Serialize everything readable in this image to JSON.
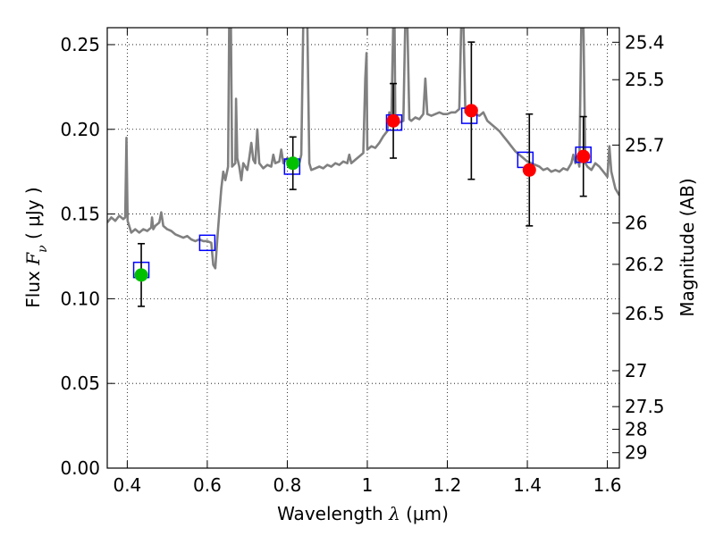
{
  "chart_data": {
    "type": "line",
    "xlabel": {
      "text": "Wavelength",
      "symbol": "λ",
      "unit": "(μm)"
    },
    "ylabel": {
      "text": "Flux",
      "symbol": "F",
      "subscript": "ν",
      "unit": "( μJy )"
    },
    "y2label": "Magnitude (AB)",
    "xlim": [
      0.35,
      1.63
    ],
    "ylim": [
      0.0,
      0.26
    ],
    "grid": true,
    "xticks": [
      0.4,
      0.6,
      0.8,
      1.0,
      1.2,
      1.4,
      1.6
    ],
    "xtick_labels": [
      "0.4",
      "0.6",
      "0.8",
      "1",
      "1.2",
      "1.4",
      "1.6"
    ],
    "yticks": [
      0.0,
      0.05,
      0.1,
      0.15,
      0.2,
      0.25
    ],
    "ytick_labels": [
      "0.00",
      "0.05",
      "0.10",
      "0.15",
      "0.20",
      "0.25"
    ],
    "y2ticks": [
      {
        "label": "25.4",
        "flux": 0.2514
      },
      {
        "label": "25.5",
        "flux": 0.2293
      },
      {
        "label": "25.7",
        "flux": 0.1907
      },
      {
        "label": "26",
        "flux": 0.1447
      },
      {
        "label": "26.2",
        "flux": 0.1203
      },
      {
        "label": "26.5",
        "flux": 0.0913
      },
      {
        "label": "27",
        "flux": 0.0575
      },
      {
        "label": "27.5",
        "flux": 0.0363
      },
      {
        "label": "28",
        "flux": 0.0229
      },
      {
        "label": "29",
        "flux": 0.0091
      }
    ],
    "series": [
      {
        "kind": "sed_model",
        "color": "#808080",
        "points": [
          [
            0.35,
            0.145
          ],
          [
            0.36,
            0.148
          ],
          [
            0.37,
            0.146
          ],
          [
            0.38,
            0.149
          ],
          [
            0.39,
            0.147
          ],
          [
            0.395,
            0.148
          ],
          [
            0.398,
            0.195
          ],
          [
            0.401,
            0.146
          ],
          [
            0.41,
            0.139
          ],
          [
            0.42,
            0.141
          ],
          [
            0.43,
            0.139
          ],
          [
            0.44,
            0.141
          ],
          [
            0.45,
            0.14
          ],
          [
            0.46,
            0.142
          ],
          [
            0.462,
            0.148
          ],
          [
            0.465,
            0.141
          ],
          [
            0.47,
            0.143
          ],
          [
            0.48,
            0.145
          ],
          [
            0.485,
            0.151
          ],
          [
            0.49,
            0.143
          ],
          [
            0.5,
            0.141
          ],
          [
            0.51,
            0.14
          ],
          [
            0.52,
            0.138
          ],
          [
            0.53,
            0.137
          ],
          [
            0.54,
            0.136
          ],
          [
            0.55,
            0.137
          ],
          [
            0.56,
            0.135
          ],
          [
            0.57,
            0.134
          ],
          [
            0.58,
            0.135
          ],
          [
            0.59,
            0.134
          ],
          [
            0.6,
            0.134
          ],
          [
            0.61,
            0.133
          ],
          [
            0.615,
            0.12
          ],
          [
            0.62,
            0.118
          ],
          [
            0.625,
            0.135
          ],
          [
            0.63,
            0.15
          ],
          [
            0.635,
            0.165
          ],
          [
            0.64,
            0.175
          ],
          [
            0.645,
            0.17
          ],
          [
            0.652,
            0.178
          ],
          [
            0.655,
            0.265
          ],
          [
            0.659,
            0.265
          ],
          [
            0.662,
            0.178
          ],
          [
            0.67,
            0.18
          ],
          [
            0.672,
            0.218
          ],
          [
            0.675,
            0.183
          ],
          [
            0.68,
            0.178
          ],
          [
            0.685,
            0.17
          ],
          [
            0.69,
            0.18
          ],
          [
            0.7,
            0.176
          ],
          [
            0.705,
            0.183
          ],
          [
            0.71,
            0.192
          ],
          [
            0.715,
            0.182
          ],
          [
            0.72,
            0.18
          ],
          [
            0.725,
            0.2
          ],
          [
            0.73,
            0.18
          ],
          [
            0.74,
            0.177
          ],
          [
            0.75,
            0.179
          ],
          [
            0.76,
            0.178
          ],
          [
            0.765,
            0.185
          ],
          [
            0.77,
            0.18
          ],
          [
            0.78,
            0.181
          ],
          [
            0.785,
            0.188
          ],
          [
            0.79,
            0.18
          ],
          [
            0.8,
            0.183
          ],
          [
            0.81,
            0.181
          ],
          [
            0.82,
            0.18
          ],
          [
            0.83,
            0.18
          ],
          [
            0.835,
            0.185
          ],
          [
            0.84,
            0.265
          ],
          [
            0.845,
            0.265
          ],
          [
            0.85,
            0.265
          ],
          [
            0.855,
            0.18
          ],
          [
            0.86,
            0.176
          ],
          [
            0.87,
            0.177
          ],
          [
            0.88,
            0.178
          ],
          [
            0.89,
            0.177
          ],
          [
            0.9,
            0.179
          ],
          [
            0.91,
            0.178
          ],
          [
            0.92,
            0.18
          ],
          [
            0.93,
            0.179
          ],
          [
            0.94,
            0.181
          ],
          [
            0.95,
            0.18
          ],
          [
            0.955,
            0.185
          ],
          [
            0.96,
            0.18
          ],
          [
            0.97,
            0.182
          ],
          [
            0.98,
            0.184
          ],
          [
            0.99,
            0.186
          ],
          [
            0.995,
            0.23
          ],
          [
            0.998,
            0.245
          ],
          [
            1.0,
            0.188
          ],
          [
            1.01,
            0.19
          ],
          [
            1.02,
            0.189
          ],
          [
            1.03,
            0.192
          ],
          [
            1.04,
            0.196
          ],
          [
            1.05,
            0.199
          ],
          [
            1.055,
            0.21
          ],
          [
            1.06,
            0.203
          ],
          [
            1.065,
            0.265
          ],
          [
            1.068,
            0.265
          ],
          [
            1.07,
            0.205
          ],
          [
            1.08,
            0.204
          ],
          [
            1.09,
            0.205
          ],
          [
            1.095,
            0.265
          ],
          [
            1.1,
            0.265
          ],
          [
            1.105,
            0.206
          ],
          [
            1.11,
            0.205
          ],
          [
            1.12,
            0.207
          ],
          [
            1.13,
            0.206
          ],
          [
            1.14,
            0.209
          ],
          [
            1.145,
            0.23
          ],
          [
            1.15,
            0.209
          ],
          [
            1.16,
            0.208
          ],
          [
            1.17,
            0.209
          ],
          [
            1.18,
            0.21
          ],
          [
            1.19,
            0.209
          ],
          [
            1.2,
            0.209
          ],
          [
            1.21,
            0.21
          ],
          [
            1.22,
            0.21
          ],
          [
            1.23,
            0.212
          ],
          [
            1.235,
            0.265
          ],
          [
            1.24,
            0.265
          ],
          [
            1.245,
            0.21
          ],
          [
            1.25,
            0.209
          ],
          [
            1.26,
            0.211
          ],
          [
            1.27,
            0.209
          ],
          [
            1.28,
            0.208
          ],
          [
            1.29,
            0.21
          ],
          [
            1.3,
            0.205
          ],
          [
            1.31,
            0.203
          ],
          [
            1.32,
            0.201
          ],
          [
            1.33,
            0.199
          ],
          [
            1.34,
            0.196
          ],
          [
            1.35,
            0.193
          ],
          [
            1.36,
            0.19
          ],
          [
            1.37,
            0.187
          ],
          [
            1.38,
            0.185
          ],
          [
            1.39,
            0.183
          ],
          [
            1.4,
            0.181
          ],
          [
            1.41,
            0.18
          ],
          [
            1.42,
            0.179
          ],
          [
            1.43,
            0.178
          ],
          [
            1.44,
            0.176
          ],
          [
            1.45,
            0.177
          ],
          [
            1.46,
            0.175
          ],
          [
            1.47,
            0.176
          ],
          [
            1.48,
            0.175
          ],
          [
            1.49,
            0.177
          ],
          [
            1.5,
            0.176
          ],
          [
            1.51,
            0.18
          ],
          [
            1.515,
            0.185
          ],
          [
            1.52,
            0.18
          ],
          [
            1.525,
            0.184
          ],
          [
            1.53,
            0.178
          ],
          [
            1.535,
            0.265
          ],
          [
            1.54,
            0.265
          ],
          [
            1.545,
            0.18
          ],
          [
            1.55,
            0.178
          ],
          [
            1.56,
            0.176
          ],
          [
            1.57,
            0.18
          ],
          [
            1.58,
            0.178
          ],
          [
            1.59,
            0.175
          ],
          [
            1.6,
            0.172
          ],
          [
            1.605,
            0.19
          ],
          [
            1.61,
            0.175
          ],
          [
            1.62,
            0.165
          ],
          [
            1.63,
            0.161
          ]
        ]
      },
      {
        "kind": "model_band_flux",
        "marker": "open-square",
        "color": "#0000ff",
        "points": [
          {
            "x": 0.435,
            "y": 0.117
          },
          {
            "x": 0.6,
            "y": 0.133
          },
          {
            "x": 0.812,
            "y": 0.178
          },
          {
            "x": 1.067,
            "y": 0.204
          },
          {
            "x": 1.255,
            "y": 0.208
          },
          {
            "x": 1.395,
            "y": 0.182
          },
          {
            "x": 1.54,
            "y": 0.185
          }
        ]
      },
      {
        "kind": "observed_hst_acs",
        "marker": "filled-circle",
        "color": "#00c000",
        "points": [
          {
            "x": 0.435,
            "y": 0.114,
            "err": 0.0185
          },
          {
            "x": 0.814,
            "y": 0.18,
            "err": 0.0155
          }
        ]
      },
      {
        "kind": "observed_hst_wfc3",
        "marker": "filled-circle",
        "color": "#ff0000",
        "points": [
          {
            "x": 1.065,
            "y": 0.205,
            "err": 0.022
          },
          {
            "x": 1.26,
            "y": 0.211,
            "err": 0.0405
          },
          {
            "x": 1.405,
            "y": 0.176,
            "err": 0.033
          },
          {
            "x": 1.54,
            "y": 0.184,
            "err": 0.0235
          }
        ]
      }
    ]
  }
}
